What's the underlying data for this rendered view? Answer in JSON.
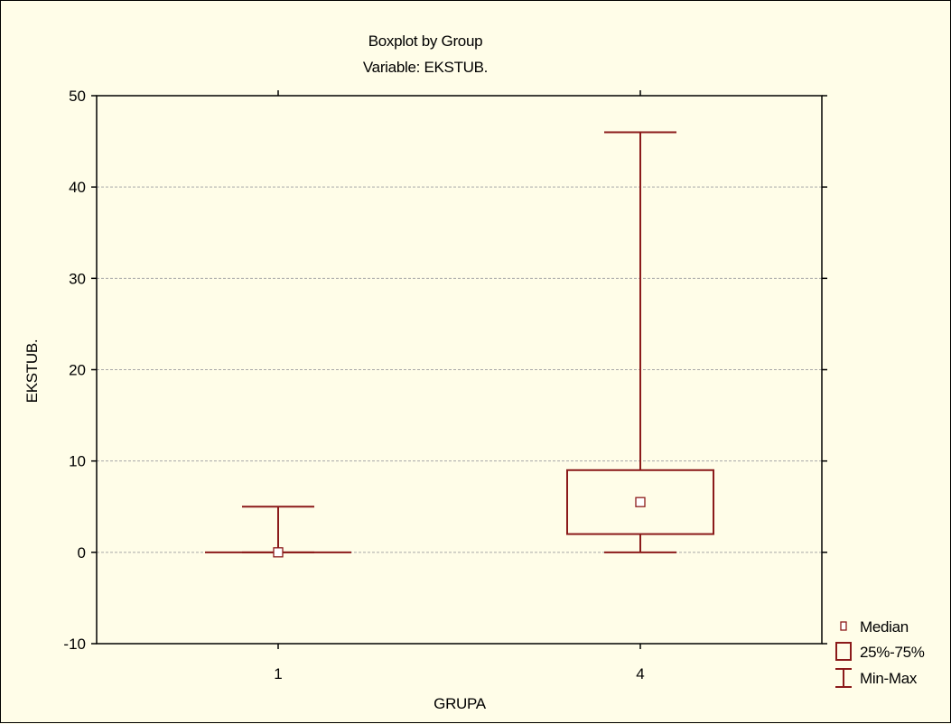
{
  "chart_data": {
    "type": "boxplot",
    "title": "Boxplot by Group",
    "subtitle": "Variable: EKSTUB.",
    "xlabel": "GRUPA",
    "ylabel": "EKSTUB.",
    "ylim": [
      -10,
      50
    ],
    "yticks": [
      -10,
      0,
      10,
      20,
      30,
      40,
      50
    ],
    "grid": true,
    "color": "#8b1a1a",
    "categories": [
      "1",
      "4"
    ],
    "boxes": [
      {
        "group": "1",
        "min": 0,
        "q1": 0,
        "median": 0,
        "q3": 0,
        "max": 5
      },
      {
        "group": "4",
        "min": 0,
        "q1": 2,
        "median": 5.5,
        "q3": 9,
        "max": 46
      }
    ],
    "legend": {
      "placement": "bottom-right",
      "items": [
        {
          "label": "Median",
          "symbol": "small-square"
        },
        {
          "label": "25%-75%",
          "symbol": "box"
        },
        {
          "label": "Min-Max",
          "symbol": "whisker"
        }
      ]
    }
  }
}
